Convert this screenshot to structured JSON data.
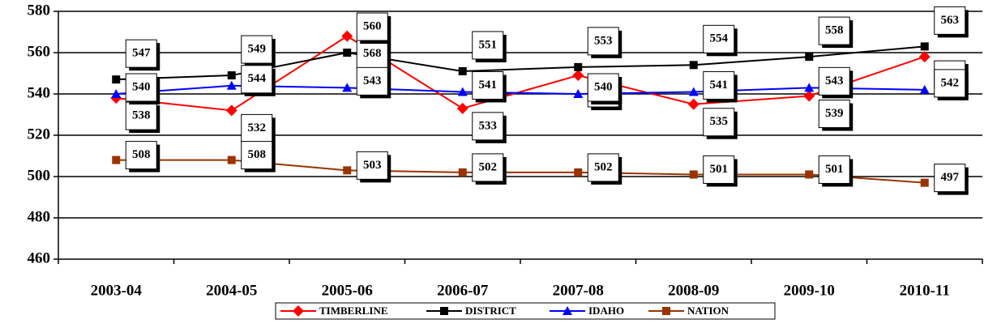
{
  "chart_data": {
    "type": "line",
    "categories": [
      "2003-04",
      "2004-05",
      "2005-06",
      "2006-07",
      "2007-08",
      "2008-09",
      "2009-10",
      "2010-11"
    ],
    "series": [
      {
        "name": "TIMBERLINE",
        "color": "#ff0000",
        "marker": "diamond",
        "values": [
          538,
          532,
          568,
          533,
          549,
          535,
          539,
          558
        ]
      },
      {
        "name": "DISTRICT",
        "color": "#000000",
        "marker": "square",
        "values": [
          547,
          549,
          560,
          551,
          553,
          554,
          558,
          563
        ]
      },
      {
        "name": "IDAHO",
        "color": "#0000ff",
        "marker": "triangle",
        "values": [
          540,
          544,
          543,
          541,
          540,
          541,
          543,
          542
        ]
      },
      {
        "name": "NATION",
        "color": "#993300",
        "marker": "square",
        "values": [
          508,
          508,
          503,
          502,
          502,
          501,
          501,
          497
        ]
      }
    ],
    "ylim": [
      460,
      580
    ],
    "yticks": [
      460,
      480,
      500,
      520,
      540,
      560,
      580
    ],
    "grid": true,
    "legend": "bottom"
  }
}
